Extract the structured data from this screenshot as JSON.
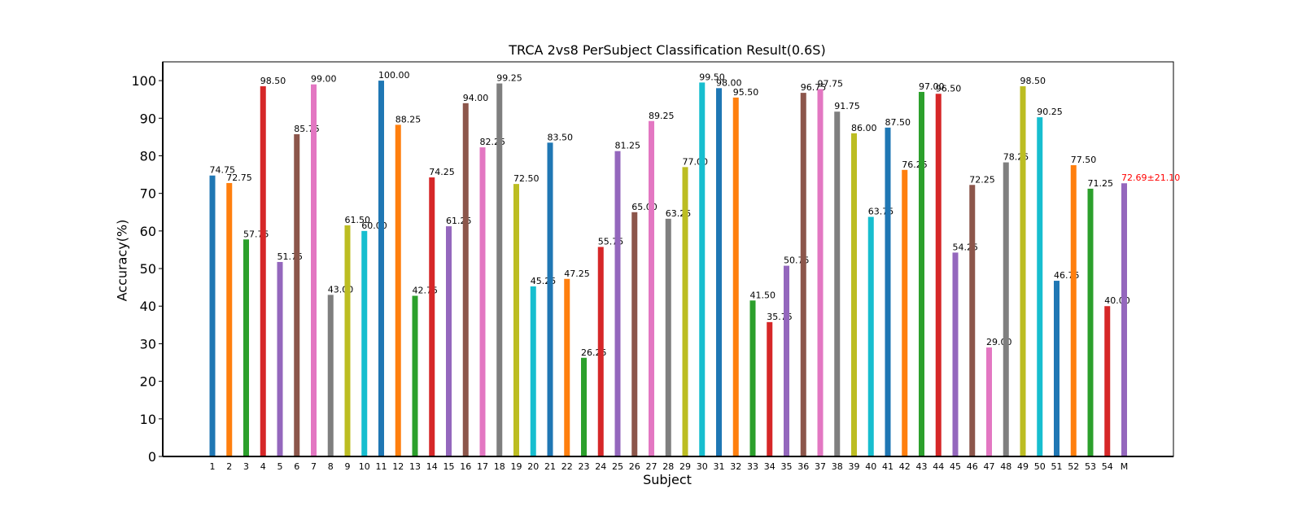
{
  "chart_data": {
    "type": "bar",
    "title": "TRCA 2vs8 PerSubject Classification Result(0.6S)",
    "xlabel": "Subject",
    "ylabel": "Accuracy(%)",
    "ylim": [
      0,
      105
    ],
    "yticks": [
      0,
      10,
      20,
      30,
      40,
      50,
      60,
      70,
      80,
      90,
      100
    ],
    "grid": false,
    "categories": [
      "1",
      "2",
      "3",
      "4",
      "5",
      "6",
      "7",
      "8",
      "9",
      "10",
      "11",
      "12",
      "13",
      "14",
      "15",
      "16",
      "17",
      "18",
      "19",
      "20",
      "21",
      "22",
      "23",
      "24",
      "25",
      "26",
      "27",
      "28",
      "29",
      "30",
      "31",
      "32",
      "33",
      "34",
      "35",
      "36",
      "37",
      "38",
      "39",
      "40",
      "41",
      "42",
      "43",
      "44",
      "45",
      "46",
      "47",
      "48",
      "49",
      "50",
      "51",
      "52",
      "53",
      "54",
      "M"
    ],
    "values": [
      74.75,
      72.75,
      57.75,
      98.5,
      51.75,
      85.75,
      99.0,
      43.0,
      61.5,
      60.0,
      100.0,
      88.25,
      42.75,
      74.25,
      61.25,
      94.0,
      82.25,
      99.25,
      72.5,
      45.25,
      83.5,
      47.25,
      26.25,
      55.75,
      81.25,
      65.0,
      89.25,
      63.25,
      77.0,
      99.5,
      98.0,
      95.5,
      41.5,
      35.75,
      50.75,
      96.75,
      97.75,
      91.75,
      86.0,
      63.75,
      87.5,
      76.25,
      97.0,
      96.5,
      54.25,
      72.25,
      29.0,
      78.25,
      98.5,
      90.25,
      46.75,
      77.5,
      71.25,
      40.0,
      72.69
    ],
    "data_labels": [
      "74.75",
      "72.75",
      "57.75",
      "98.50",
      "51.75",
      "85.75",
      "99.00",
      "43.00",
      "61.50",
      "60.00",
      "100.00",
      "88.25",
      "42.75",
      "74.25",
      "61.25",
      "94.00",
      "82.25",
      "99.25",
      "72.50",
      "45.25",
      "83.50",
      "47.25",
      "26.25",
      "55.75",
      "81.25",
      "65.00",
      "89.25",
      "63.25",
      "77.00",
      "99.50",
      "98.00",
      "95.50",
      "41.50",
      "35.75",
      "50.75",
      "96.75",
      "97.75",
      "91.75",
      "86.00",
      "63.75",
      "87.50",
      "76.25",
      "97.00",
      "96.50",
      "54.25",
      "72.25",
      "29.00",
      "78.25",
      "98.50",
      "90.25",
      "46.75",
      "77.50",
      "71.25",
      "40.00",
      "72.69±21.10"
    ],
    "colors": [
      "#1f77b4",
      "#ff7f0e",
      "#2ca02c",
      "#d62728",
      "#9467bd",
      "#8c564b",
      "#e377c2",
      "#7f7f7f",
      "#bcbd22",
      "#17becf"
    ],
    "mean_label_color": "#ff0000"
  }
}
